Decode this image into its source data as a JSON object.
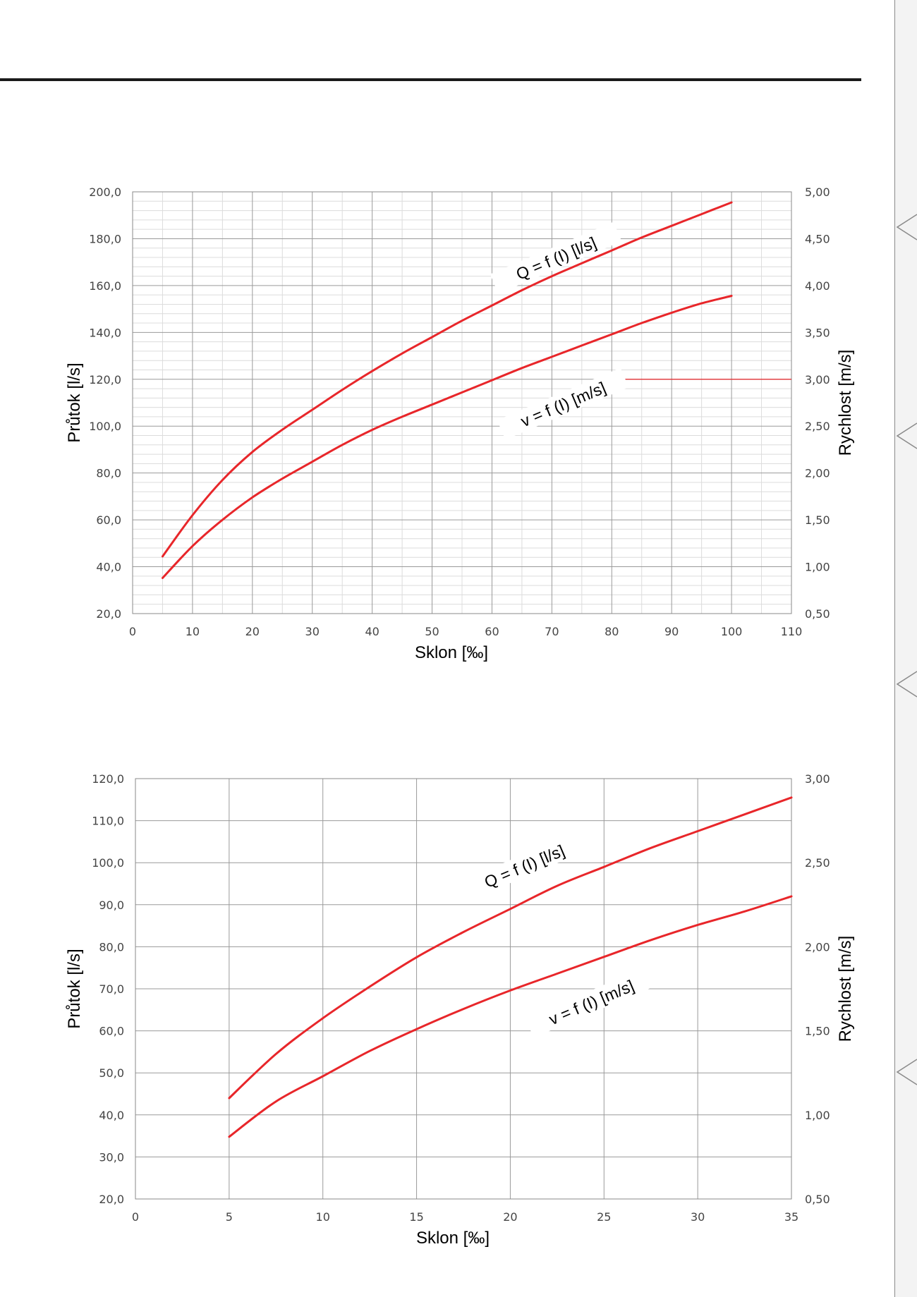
{
  "chart_data": [
    {
      "type": "line",
      "xlabel": "Sklon [‰]",
      "ylabel": "Průtok [l/s]",
      "y2label": "Rychlost [m/s]",
      "xlim": [
        0,
        110
      ],
      "ylim": [
        20,
        200
      ],
      "y2lim": [
        0.5,
        5.0
      ],
      "x_ticks": [
        "0",
        "10",
        "20",
        "30",
        "40",
        "50",
        "60",
        "70",
        "80",
        "90",
        "100",
        "110"
      ],
      "y_ticks": [
        "20,0",
        "40,0",
        "60,0",
        "80,0",
        "100,0",
        "120,0",
        "140,0",
        "160,0",
        "180,0",
        "200,0"
      ],
      "y2_ticks": [
        "0,50",
        "1,00",
        "1,50",
        "2,00",
        "2,50",
        "3,00",
        "3,50",
        "4,00",
        "4,50",
        "5,00"
      ],
      "grid": true,
      "minor_grid": true,
      "series": [
        {
          "name": "Q = f (I) [l/s]",
          "axis": "left",
          "x": [
            5,
            10,
            15,
            20,
            25,
            30,
            35,
            40,
            45,
            50,
            55,
            60,
            65,
            70,
            75,
            80,
            85,
            90,
            95,
            100
          ],
          "values": [
            44.4,
            62.0,
            77.0,
            89.0,
            98.5,
            107.0,
            115.5,
            123.5,
            131.0,
            138.0,
            145.0,
            151.5,
            158.0,
            164.0,
            169.5,
            175.0,
            180.5,
            185.5,
            190.5,
            195.5
          ]
        },
        {
          "name": "v = f (I) [m/s]",
          "axis": "right",
          "x": [
            5,
            10,
            15,
            20,
            25,
            30,
            35,
            40,
            45,
            50,
            55,
            60,
            65,
            70,
            75,
            80,
            85,
            90,
            95,
            100
          ],
          "values": [
            0.88,
            1.22,
            1.5,
            1.74,
            1.94,
            2.12,
            2.3,
            2.46,
            2.6,
            2.73,
            2.86,
            2.99,
            3.12,
            3.24,
            3.36,
            3.48,
            3.6,
            3.71,
            3.81,
            3.89
          ]
        }
      ],
      "color": "#e8262a"
    },
    {
      "type": "line",
      "xlabel": "Sklon [‰]",
      "ylabel": "Průtok [l/s]",
      "y2label": "Rychlost [m/s]",
      "xlim": [
        0,
        35
      ],
      "ylim": [
        20,
        120
      ],
      "y2lim": [
        0.5,
        3.0
      ],
      "x_ticks": [
        "0",
        "5",
        "10",
        "15",
        "20",
        "25",
        "30",
        "35"
      ],
      "y_ticks": [
        "20,0",
        "30,0",
        "40,0",
        "50,0",
        "60,0",
        "70,0",
        "80,0",
        "90,0",
        "100,0",
        "110,0",
        "120,0"
      ],
      "y2_ticks": [
        "0,50",
        "1,00",
        "1,50",
        "2,00",
        "2,50",
        "3,00"
      ],
      "grid": true,
      "minor_grid": false,
      "series": [
        {
          "name": "Q = f (I) [l/s]",
          "axis": "left",
          "x": [
            5,
            7.5,
            10,
            12.5,
            15,
            17.5,
            20,
            22.5,
            25,
            27.5,
            30,
            32.5,
            35
          ],
          "values": [
            44.0,
            54.5,
            63.0,
            70.5,
            77.5,
            83.5,
            89.0,
            94.5,
            99.0,
            103.5,
            107.5,
            111.5,
            115.5
          ]
        },
        {
          "name": "v = f (I) [m/s]",
          "axis": "right",
          "x": [
            5,
            7.5,
            10,
            12.5,
            15,
            17.5,
            20,
            22.5,
            25,
            27.5,
            30,
            32.5,
            35
          ],
          "values": [
            0.87,
            1.08,
            1.23,
            1.38,
            1.51,
            1.63,
            1.74,
            1.84,
            1.94,
            2.04,
            2.13,
            2.21,
            2.3
          ]
        }
      ],
      "color": "#e8262a"
    }
  ]
}
